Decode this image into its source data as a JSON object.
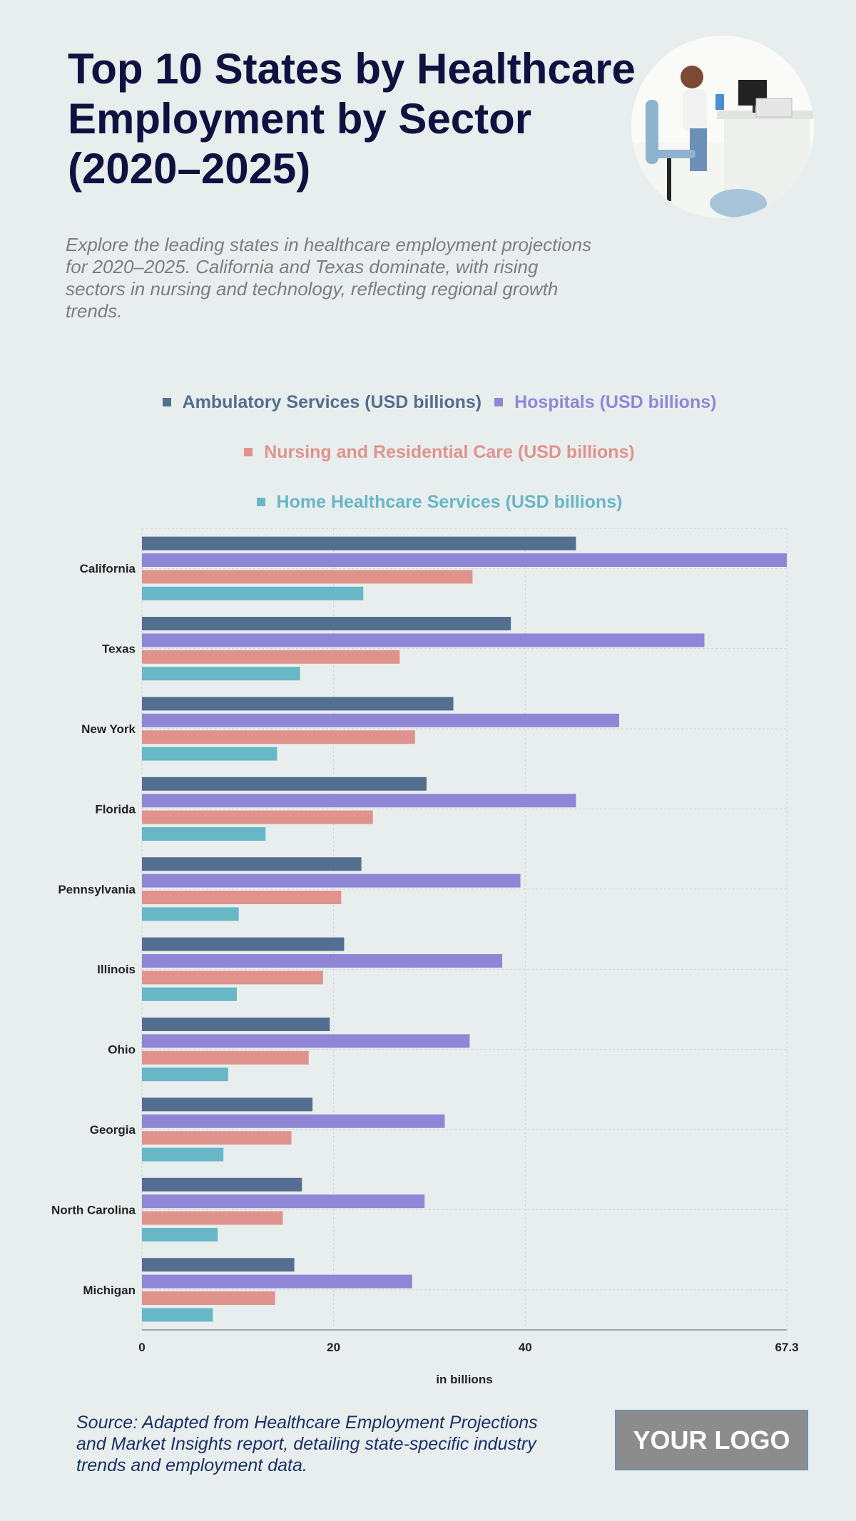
{
  "chart_data": {
    "type": "bar",
    "orientation": "horizontal",
    "title": "Top 10 States by Healthcare Employment by Sector (2020–2025)",
    "subtitle": "Explore the leading states in healthcare employment projections for 2020–2025. California and Texas dominate, with rising sectors in nursing and technology, reflecting regional growth trends.",
    "x_label": "in billions",
    "categories": [
      "California",
      "Texas",
      "New York",
      "Florida",
      "Pennsylvania",
      "Illinois",
      "Ohio",
      "Georgia",
      "North Carolina",
      "Michigan"
    ],
    "series": [
      {
        "name": "Ambulatory Services (USD billions)",
        "color": "#546e8f",
        "values": [
          45.3,
          38.5,
          32.5,
          29.7,
          22.9,
          21.1,
          19.6,
          17.8,
          16.7,
          15.9
        ]
      },
      {
        "name": "Hospitals (USD billions)",
        "color": "#8f87d6",
        "values": [
          67.3,
          58.7,
          49.8,
          45.3,
          39.5,
          37.6,
          34.2,
          31.6,
          29.5,
          28.2
        ]
      },
      {
        "name": "Nursing and Residential Care (USD billions)",
        "color": "#e0938c",
        "values": [
          34.5,
          26.9,
          28.5,
          24.1,
          20.8,
          18.9,
          17.4,
          15.6,
          14.7,
          13.9
        ]
      },
      {
        "name": "Home Healthcare Services (USD billions)",
        "color": "#67b7c7",
        "values": [
          23.1,
          16.5,
          14.1,
          12.9,
          10.1,
          9.9,
          9.0,
          8.5,
          7.9,
          7.4
        ]
      }
    ],
    "xlim": [
      0,
      67.3
    ],
    "xticks": [
      0,
      20,
      40,
      67.3
    ],
    "grid": true,
    "source": "Source: Adapted from Healthcare Employment Projections and Market Insights report, detailing state-specific industry trends and employment data."
  },
  "logo": "YOUR LOGO"
}
